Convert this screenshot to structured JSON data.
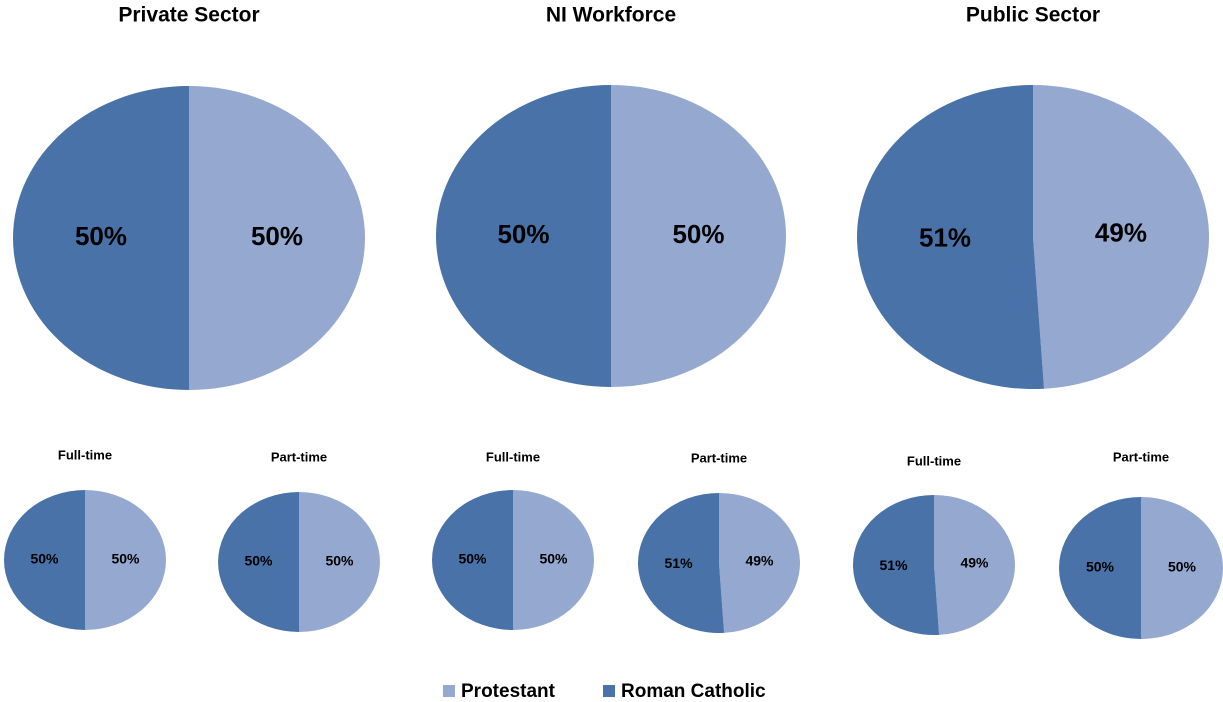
{
  "chart_data": [
    {
      "type": "pie",
      "title": "Private Sector",
      "values": [
        50,
        50
      ],
      "value_labels": [
        "50%",
        "50%"
      ]
    },
    {
      "type": "pie",
      "title": "NI Workforce",
      "values": [
        50,
        50
      ],
      "value_labels": [
        "50%",
        "50%"
      ]
    },
    {
      "type": "pie",
      "title": "Public Sector",
      "values": [
        49,
        51
      ],
      "value_labels": [
        "49%",
        "51%"
      ]
    },
    {
      "type": "pie",
      "title": "Full-time",
      "values": [
        50,
        50
      ],
      "value_labels": [
        "50%",
        "50%"
      ]
    },
    {
      "type": "pie",
      "title": "Part-time",
      "values": [
        50,
        50
      ],
      "value_labels": [
        "50%",
        "50%"
      ]
    },
    {
      "type": "pie",
      "title": "Full-time",
      "values": [
        50,
        50
      ],
      "value_labels": [
        "50%",
        "50%"
      ]
    },
    {
      "type": "pie",
      "title": "Part-time",
      "values": [
        49,
        51
      ],
      "value_labels": [
        "49%",
        "51%"
      ]
    },
    {
      "type": "pie",
      "title": "Full-time",
      "values": [
        49,
        51
      ],
      "value_labels": [
        "49%",
        "51%"
      ]
    },
    {
      "type": "pie",
      "title": "Part-time",
      "values": [
        50,
        50
      ],
      "value_labels": [
        "50%",
        "50%"
      ]
    }
  ],
  "legend": [
    {
      "name": "Protestant",
      "color": "#94a8d0"
    },
    {
      "name": "Roman Catholic",
      "color": "#4872a8"
    }
  ]
}
